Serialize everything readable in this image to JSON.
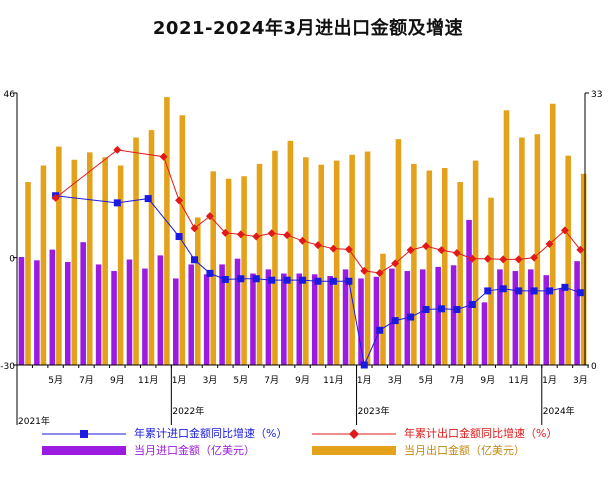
{
  "chart_data": {
    "type": "bar",
    "title": "2021-2024年3月进出口金额及增速",
    "months": [
      "2021-03",
      "2021-04",
      "2021-05",
      "2021-06",
      "2021-07",
      "2021-08",
      "2021-09",
      "2021-10",
      "2021-11",
      "2021-12",
      "2022-01",
      "2022-02",
      "2022-03",
      "2022-04",
      "2022-05",
      "2022-06",
      "2022-07",
      "2022-08",
      "2022-09",
      "2022-10",
      "2022-11",
      "2022-12",
      "2023-01",
      "2023-02",
      "2023-03",
      "2023-04",
      "2023-05",
      "2023-06",
      "2023-07",
      "2023-08",
      "2023-09",
      "2023-10",
      "2023-11",
      "2023-12",
      "2024-01",
      "2024-02",
      "2024-03"
    ],
    "x_tick_labels": [
      "5月",
      "7月",
      "9月",
      "11月",
      "1月",
      "3月",
      "5月",
      "7月",
      "9月",
      "11月",
      "1月",
      "3月",
      "5月",
      "7月",
      "9月",
      "11月",
      "1月",
      "3月"
    ],
    "year_labels": [
      "2021年",
      "2022年",
      "2023年",
      "2024年"
    ],
    "left_axis": {
      "min": -30,
      "max": 46,
      "tick_labels": [
        "46",
        "0",
        "-30"
      ],
      "unit": "%"
    },
    "right_axis": {
      "min": 0,
      "max": 33,
      "tick_labels": [
        "33",
        "0"
      ],
      "unit": "亿美元"
    },
    "series": [
      {
        "name": "当月进口金额（亿美元）",
        "kind": "bar",
        "axis": "right",
        "color": "#9B1CE0",
        "values": [
          13.1,
          12.7,
          14.0,
          12.5,
          14.9,
          12.2,
          11.4,
          12.8,
          11.7,
          13.3,
          10.5,
          12.2,
          11.0,
          12.2,
          12.9,
          11.1,
          11.6,
          11.1,
          11.1,
          11.0,
          10.8,
          11.6,
          10.5,
          10.7,
          11.7,
          11.4,
          11.6,
          11.9,
          12.1,
          17.6,
          7.6,
          11.6,
          11.4,
          11.6,
          10.9,
          9.3,
          12.6
        ]
      },
      {
        "name": "当月出口金额（亿美元）",
        "kind": "bar",
        "axis": "right",
        "color": "#E3A21A",
        "values": [
          22.2,
          24.2,
          26.5,
          24.9,
          25.8,
          25.2,
          24.2,
          27.6,
          28.5,
          32.5,
          30.3,
          17.9,
          23.5,
          22.6,
          22.9,
          24.4,
          26.0,
          27.2,
          25.2,
          24.3,
          24.8,
          25.5,
          25.9,
          13.5,
          27.4,
          24.4,
          23.6,
          23.9,
          22.2,
          24.8,
          20.3,
          30.9,
          27.6,
          28.0,
          31.7,
          25.4,
          23.2
        ]
      },
      {
        "name": "年累计进口金额同比增速（%）",
        "kind": "line",
        "axis": "left",
        "color": "#1A1AE0",
        "x": [
          "2021-05",
          "2021-09",
          "2021-11",
          "2022-01",
          "2022-02",
          "2022-03",
          "2022-04",
          "2022-05",
          "2022-06",
          "2022-07",
          "2022-08",
          "2022-09",
          "2022-10",
          "2022-11",
          "2022-12",
          "2023-01",
          "2023-02",
          "2023-03",
          "2023-04",
          "2023-05",
          "2023-06",
          "2023-07",
          "2023-08",
          "2023-09",
          "2023-10",
          "2023-11",
          "2023-12",
          "2024-01",
          "2024-02",
          "2024-03"
        ],
        "values": [
          17.3,
          15.3,
          16.5,
          5.9,
          -0.6,
          -4.4,
          -6.1,
          -5.9,
          -5.9,
          -6.3,
          -6.3,
          -6.3,
          -6.6,
          -6.6,
          -6.6,
          -30.0,
          -20.3,
          -17.6,
          -16.6,
          -14.5,
          -14.3,
          -14.5,
          -13.1,
          -9.3,
          -8.7,
          -9.3,
          -9.3,
          -9.3,
          -8.3,
          -9.8
        ]
      },
      {
        "name": "年累计出口金额同比增速（%）",
        "kind": "line",
        "axis": "left",
        "color": "#E01A1A",
        "x": [
          "2021-05",
          "2021-09",
          "2021-12",
          "2022-01",
          "2022-02",
          "2022-03",
          "2022-04",
          "2022-05",
          "2022-06",
          "2022-07",
          "2022-08",
          "2022-09",
          "2022-10",
          "2022-11",
          "2022-12",
          "2023-01",
          "2023-02",
          "2023-03",
          "2023-04",
          "2023-05",
          "2023-06",
          "2023-07",
          "2023-08",
          "2023-09",
          "2023-10",
          "2023-11",
          "2023-12",
          "2024-01",
          "2024-02",
          "2024-03"
        ],
        "values": [
          16.7,
          30.1,
          28.2,
          16.0,
          8.2,
          11.6,
          6.9,
          6.5,
          5.9,
          6.8,
          6.3,
          4.7,
          3.5,
          2.5,
          2.3,
          -3.7,
          -4.3,
          -1.6,
          2.1,
          3.2,
          2.1,
          1.3,
          -0.3,
          -0.3,
          -0.5,
          -0.5,
          0.0,
          3.8,
          7.6,
          2.2
        ]
      }
    ]
  },
  "legend": [
    {
      "label": "年累计进口金额同比增速（%）",
      "color": "#1A1AE0",
      "style": "line-marker-square"
    },
    {
      "label": "年累计出口金额同比增速（%）",
      "color": "#E01A1A",
      "style": "line-marker-diamond"
    },
    {
      "label": "当月进口金额（亿美元）",
      "color": "#9B1CE0",
      "style": "bar"
    },
    {
      "label": "当月出口金额（亿美元）",
      "color": "#E3A21A",
      "style": "bar"
    }
  ]
}
